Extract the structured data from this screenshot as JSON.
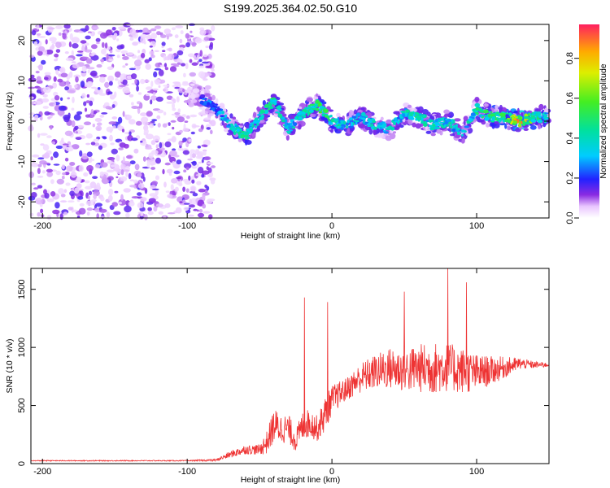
{
  "title": "S199.2025.364.02.50.G10",
  "chart_data": [
    {
      "type": "heatmap",
      "xlabel": "Height of straight line (km)",
      "ylabel": "Frequency (Hz)",
      "xlim": [
        -208,
        150
      ],
      "ylim": [
        -24,
        24
      ],
      "xticks": [
        -200,
        -100,
        0,
        100
      ],
      "yticks": [
        -20,
        -10,
        0,
        10,
        20
      ],
      "colorbar": {
        "label": "Normalized spectral amplitude",
        "range": [
          0,
          0.97
        ],
        "ticks": [
          0.0,
          0.2,
          0.4,
          0.6,
          0.8
        ]
      },
      "ridge": {
        "description_points_x": [
          -95,
          -80,
          -70,
          -60,
          -50,
          -40,
          -30,
          -20,
          -10,
          0,
          10,
          20,
          30,
          40,
          50,
          60,
          70,
          80,
          90,
          100,
          110,
          120,
          130,
          140,
          150
        ],
        "frequency": [
          7,
          3,
          -1,
          -4,
          1,
          5,
          -2,
          2,
          4,
          0,
          -1,
          1,
          -1,
          -2,
          2,
          1,
          -1,
          0,
          -3,
          3,
          1,
          1,
          0,
          1,
          1
        ],
        "amplitude": [
          0.25,
          0.3,
          0.45,
          0.5,
          0.45,
          0.55,
          0.4,
          0.45,
          0.6,
          0.5,
          0.45,
          0.4,
          0.45,
          0.4,
          0.45,
          0.5,
          0.45,
          0.45,
          0.4,
          0.5,
          0.55,
          0.6,
          0.95,
          0.55,
          0.45
        ]
      }
    },
    {
      "type": "line",
      "xlabel": "Height of straight line (km)",
      "ylabel": "SNR (10 * v/v)",
      "xlim": [
        -208,
        150
      ],
      "ylim": [
        0,
        1680
      ],
      "xticks": [
        -200,
        -100,
        0,
        100
      ],
      "yticks": [
        0,
        500,
        1000,
        1500
      ],
      "color": "#ee3333",
      "envelope": {
        "x": [
          -208,
          -100,
          -80,
          -70,
          -60,
          -50,
          -45,
          -40,
          -35,
          -30,
          -25,
          -20,
          -15,
          -10,
          -5,
          0,
          10,
          20,
          30,
          40,
          50,
          60,
          70,
          80,
          90,
          100,
          110,
          120,
          130,
          140,
          150
        ],
        "mean": [
          25,
          25,
          30,
          80,
          120,
          120,
          180,
          330,
          300,
          300,
          200,
          330,
          350,
          300,
          420,
          550,
          640,
          740,
          790,
          820,
          800,
          820,
          820,
          830,
          800,
          780,
          800,
          830,
          860,
          850,
          850
        ],
        "spread": [
          8,
          8,
          20,
          60,
          80,
          90,
          200,
          300,
          250,
          250,
          200,
          250,
          250,
          220,
          300,
          250,
          200,
          260,
          300,
          360,
          380,
          420,
          450,
          420,
          400,
          320,
          250,
          180,
          100,
          60,
          40
        ]
      },
      "spikes": [
        {
          "x": -19,
          "y": 1430
        },
        {
          "x": -3,
          "y": 1390
        },
        {
          "x": 50,
          "y": 1480
        },
        {
          "x": 80,
          "y": 1680
        },
        {
          "x": 93,
          "y": 1560
        }
      ]
    }
  ]
}
